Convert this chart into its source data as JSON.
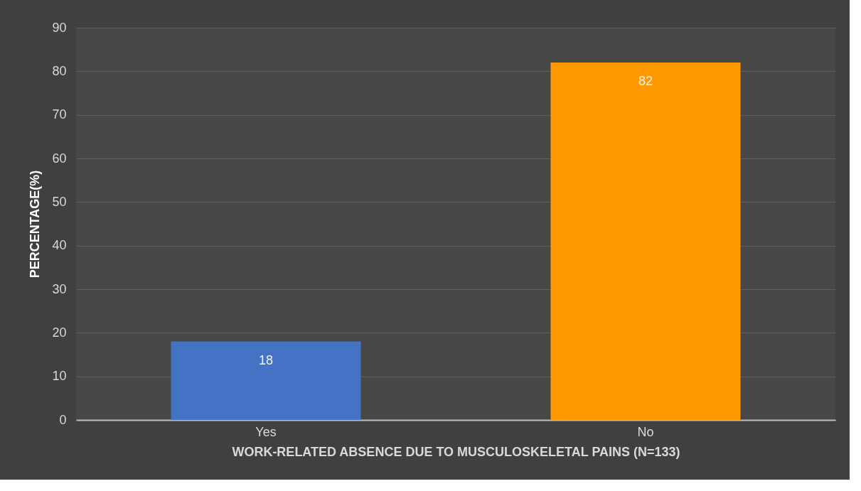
{
  "chart_data": {
    "type": "bar",
    "xlabel": "WORK-RELATED ABSENCE DUE TO MUSCULOSKELETAL PAINS (N=133)",
    "ylabel": "PERCENTAGE(%)",
    "categories": [
      "Yes",
      "No"
    ],
    "values": [
      18,
      82
    ],
    "colors": [
      "#4472c4",
      "#ff9900"
    ],
    "ylim": [
      0,
      90
    ],
    "yticks": [
      0,
      10,
      20,
      30,
      40,
      50,
      60,
      70,
      80,
      90
    ],
    "grid": "y",
    "data_labels": true
  }
}
